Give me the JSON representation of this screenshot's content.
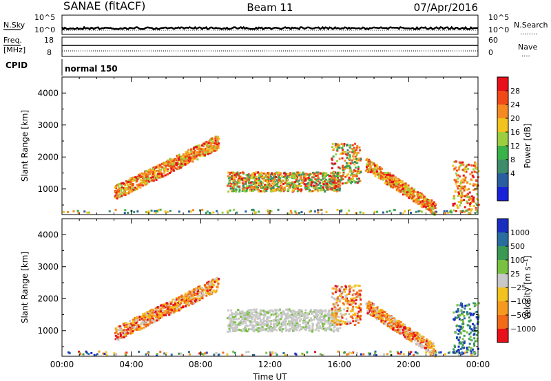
{
  "header": {
    "left_title": "SANAE (fitACF)",
    "center_title": "Beam 11",
    "right_title": "07/Apr/2016"
  },
  "status_panel": {
    "nsky_label": "N.Sky",
    "nsearch_label": "N.Search",
    "nsearch_legend": "........",
    "freq_label_line1": "Freq.",
    "freq_label_line2": "[MHz]",
    "nave_label": "Nave",
    "nave_legend": "....",
    "cpid_label": "CPID",
    "cpid_value": "normal 150",
    "noise_ticks_left": [
      "10^5",
      "10^0"
    ],
    "noise_ticks_right": [
      "10^5",
      "10^0"
    ],
    "freq_ticks": [
      "18",
      "8"
    ],
    "nave_ticks": [
      "60",
      "0"
    ]
  },
  "chart_data": [
    {
      "type": "heatmap",
      "title": "",
      "xlabel": "",
      "ylabel": "Slant Range [km]",
      "xlim": [
        "00:00",
        "24:00"
      ],
      "ylim": [
        200,
        4500
      ],
      "yticks": [
        1000,
        2000,
        3000,
        4000
      ],
      "colorbar": {
        "label": "Power [dB]",
        "ticks": [
          "28",
          "24",
          "20",
          "16",
          "12",
          "8",
          "4"
        ],
        "colors": [
          "#e8101a",
          "#f04a18",
          "#f58a22",
          "#f2c21f",
          "#9ccf3f",
          "#3ab24a",
          "#3e8c6b",
          "#2b5ea0",
          "#1a22d8"
        ]
      },
      "scatter_regions": [
        {
          "t_start": 3.0,
          "t_end": 9.0,
          "r_start": 900,
          "r_end": 2500,
          "level": "high"
        },
        {
          "t_start": 9.5,
          "t_end": 16.0,
          "r_start": 950,
          "r_end": 1550,
          "level": "medium"
        },
        {
          "t_start": 15.5,
          "t_end": 17.2,
          "r_start": 1200,
          "r_end": 2450,
          "level": "medium"
        },
        {
          "t_start": 17.5,
          "t_end": 21.5,
          "r_start": 400,
          "r_end": 1800,
          "level": "high"
        },
        {
          "t_start": 22.5,
          "t_end": 24.0,
          "r_start": 300,
          "r_end": 1900,
          "level": "high"
        }
      ]
    },
    {
      "type": "heatmap",
      "title": "",
      "xlabel": "Time UT",
      "ylabel": "Slant Range [km]",
      "xlim": [
        "00:00",
        "24:00"
      ],
      "ylim": [
        200,
        4500
      ],
      "yticks": [
        1000,
        2000,
        3000,
        4000
      ],
      "xticks": [
        "00:00",
        "04:00",
        "08:00",
        "12:00",
        "16:00",
        "20:00",
        "00:00"
      ],
      "colorbar": {
        "label": "Velocity [m s⁻¹]",
        "ticks": [
          "1000",
          "500",
          "100",
          "25",
          "−25",
          "−100",
          "−500",
          "−1000"
        ],
        "colors": [
          "#1a2fc0",
          "#2a6ea0",
          "#3a9a55",
          "#7ac142",
          "#c8c8c8",
          "#f2c21f",
          "#f59a1f",
          "#f06a18",
          "#e8101a"
        ]
      },
      "scatter_regions": [
        {
          "t_start": 3.0,
          "t_end": 9.0,
          "r_start": 900,
          "r_end": 2500,
          "level": "negative"
        },
        {
          "t_start": 9.5,
          "t_end": 16.0,
          "r_start": 1000,
          "r_end": 1700,
          "level": "ground"
        },
        {
          "t_start": 15.5,
          "t_end": 17.2,
          "r_start": 1200,
          "r_end": 2450,
          "level": "negative"
        },
        {
          "t_start": 17.5,
          "t_end": 21.5,
          "r_start": 400,
          "r_end": 1800,
          "level": "negative"
        },
        {
          "t_start": 22.5,
          "t_end": 24.0,
          "r_start": 300,
          "r_end": 1900,
          "level": "positive"
        }
      ]
    }
  ]
}
